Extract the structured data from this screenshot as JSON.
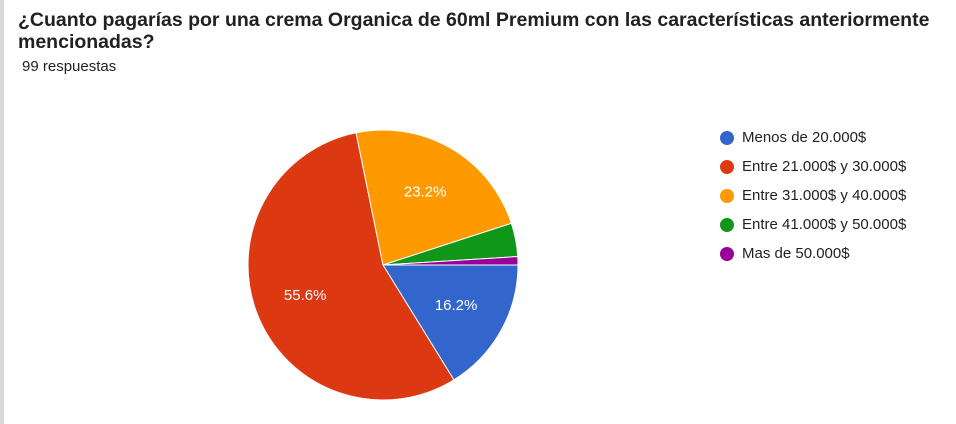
{
  "chart_data": {
    "type": "pie",
    "title": "¿Cuanto pagarías por una crema Organica de 60ml Premium con las características anteriormente mencionadas?",
    "subtitle": "99 respuestas",
    "categories": [
      "Menos de 20.000$",
      "Entre 21.000$ y 30.000$",
      "Entre 31.000$ y 40.000$",
      "Entre 41.000$ y 50.000$",
      "Mas de 50.000$"
    ],
    "values": [
      16.2,
      55.6,
      23.2,
      4,
      1
    ],
    "value_labels": [
      "16.2%",
      "55.6%",
      "23.2%",
      null,
      null
    ],
    "colors": [
      "#3366cc",
      "#dc3912",
      "#ff9900",
      "#109618",
      "#990099"
    ],
    "legend": "right"
  }
}
